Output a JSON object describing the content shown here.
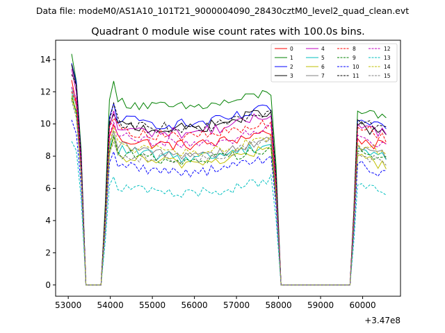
{
  "suptitle": "Data file: modeM0/AS1A10_101T21_9000004090_28430cztM0_level2_quad_clean.evt",
  "chart_data": {
    "type": "line",
    "title": "Quadrant 0 module wise count rates with 100.0s bins.",
    "xlabel": "",
    "ylabel": "",
    "x_offset_label": "+3.47e8",
    "xlim": [
      52700,
      60900
    ],
    "ylim": [
      -0.7,
      15.2
    ],
    "x_ticks": [
      53000,
      54000,
      55000,
      56000,
      57000,
      58000,
      59000,
      60000
    ],
    "y_ticks": [
      0,
      2,
      4,
      6,
      8,
      10,
      12,
      14
    ],
    "grid": false,
    "legend_position": "top-right",
    "series": [
      {
        "name": "0",
        "color": "#ff0000",
        "dash": "solid",
        "start": 12.6,
        "seg1_level": 9.2,
        "seg1_end": 9.6,
        "seg2_level": 9.1
      },
      {
        "name": "1",
        "color": "#008000",
        "dash": "solid",
        "start": 14.2,
        "seg1_level": 11.5,
        "seg1_end": 12.0,
        "seg2_level": 10.8
      },
      {
        "name": "2",
        "color": "#0000ff",
        "dash": "solid",
        "start": 13.6,
        "seg1_level": 10.4,
        "seg1_end": 11.0,
        "seg2_level": 10.2
      },
      {
        "name": "3",
        "color": "#000000",
        "dash": "solid",
        "start": 13.5,
        "seg1_level": 10.0,
        "seg1_end": 10.9,
        "seg2_level": 9.9
      },
      {
        "name": "4",
        "color": "#bf00bf",
        "dash": "solid",
        "start": 13.2,
        "seg1_level": 9.8,
        "seg1_end": 10.6,
        "seg2_level": 10.0
      },
      {
        "name": "5",
        "color": "#00bfbf",
        "dash": "solid",
        "start": 11.8,
        "seg1_level": 8.5,
        "seg1_end": 8.8,
        "seg2_level": 8.5
      },
      {
        "name": "6",
        "color": "#bfbf00",
        "dash": "solid",
        "start": 11.5,
        "seg1_level": 8.1,
        "seg1_end": 8.5,
        "seg2_level": 8.0
      },
      {
        "name": "7",
        "color": "#808080",
        "dash": "solid",
        "start": 12.0,
        "seg1_level": 8.7,
        "seg1_end": 9.0,
        "seg2_level": 8.7
      },
      {
        "name": "8",
        "color": "#ff0000",
        "dash": "dashed",
        "start": 12.3,
        "seg1_level": 9.8,
        "seg1_end": 10.1,
        "seg2_level": 9.8
      },
      {
        "name": "9",
        "color": "#008000",
        "dash": "dashed",
        "start": 11.9,
        "seg1_level": 8.3,
        "seg1_end": 8.6,
        "seg2_level": 8.3
      },
      {
        "name": "10",
        "color": "#0000ff",
        "dash": "dashed",
        "start": 10.5,
        "seg1_level": 7.6,
        "seg1_end": 7.9,
        "seg2_level": 7.5
      },
      {
        "name": "11",
        "color": "#000000",
        "dash": "dashed",
        "start": 13.3,
        "seg1_level": 10.2,
        "seg1_end": 10.7,
        "seg2_level": 10.3
      },
      {
        "name": "12",
        "color": "#bf00bf",
        "dash": "dashed",
        "start": 12.5,
        "seg1_level": 9.3,
        "seg1_end": 9.7,
        "seg2_level": 9.3
      },
      {
        "name": "13",
        "color": "#00bfbf",
        "dash": "dashed",
        "start": 9.1,
        "seg1_level": 6.2,
        "seg1_end": 6.6,
        "seg2_level": 6.2
      },
      {
        "name": "14",
        "color": "#bfbf00",
        "dash": "dashed",
        "start": 11.7,
        "seg1_level": 8.8,
        "seg1_end": 9.1,
        "seg2_level": 8.8
      },
      {
        "name": "15",
        "color": "#808080",
        "dash": "dashed",
        "start": 11.6,
        "seg1_level": 8.2,
        "seg1_end": 8.9,
        "seg2_level": 8.2
      }
    ],
    "time_structure": {
      "bin_width": 100,
      "segments": [
        {
          "x_start": 53080,
          "x_end": 53420,
          "shape": "decline"
        },
        {
          "x_start": 53420,
          "x_end": 53780,
          "shape": "zero"
        },
        {
          "x_start": 53780,
          "x_end": 53980,
          "shape": "rise"
        },
        {
          "x_start": 53980,
          "x_end": 57820,
          "shape": "plateau"
        },
        {
          "x_start": 57820,
          "x_end": 58060,
          "shape": "fall"
        },
        {
          "x_start": 58060,
          "x_end": 59700,
          "shape": "zero"
        },
        {
          "x_start": 59700,
          "x_end": 59880,
          "shape": "rise"
        },
        {
          "x_start": 59880,
          "x_end": 60560,
          "shape": "plateau"
        }
      ]
    }
  }
}
